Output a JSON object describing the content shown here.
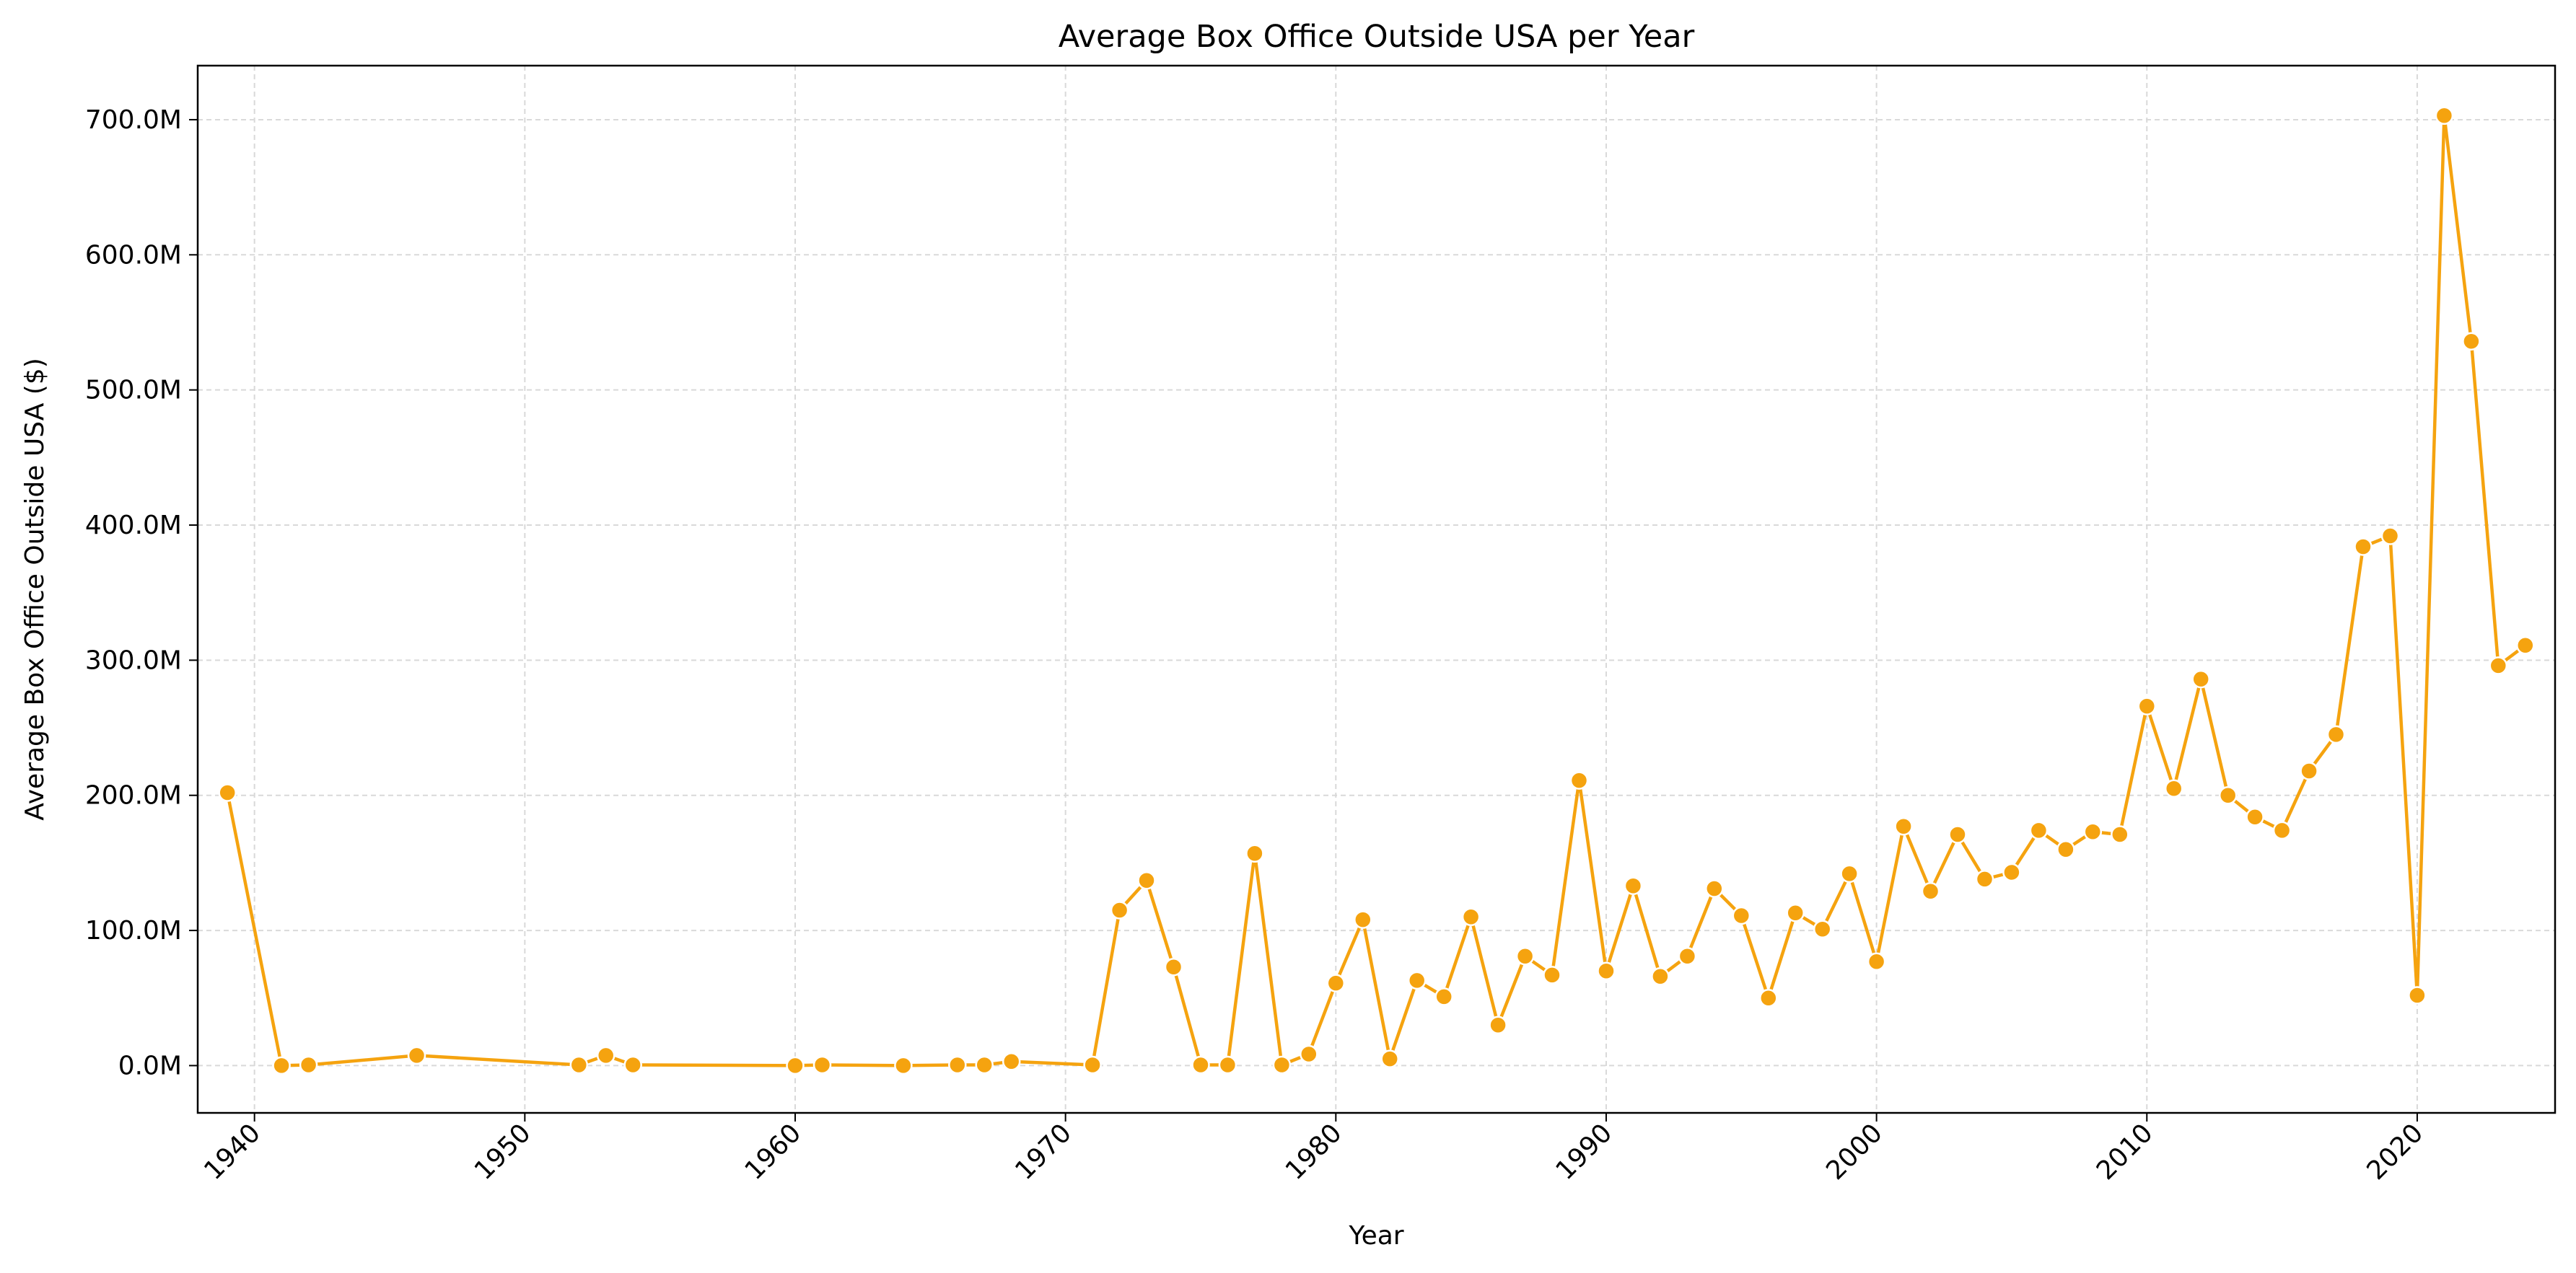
{
  "chart_data": {
    "type": "line",
    "title": "Average Box Office Outside USA per Year",
    "xlabel": "Year",
    "ylabel": "Average Box Office Outside USA ($)",
    "xlim": [
      1937.9,
      1925.1
    ],
    "ylim": [
      -35,
      740
    ],
    "x_ticks": [
      1940,
      1950,
      1960,
      1970,
      1980,
      1990,
      2000,
      2010,
      2020
    ],
    "x_tick_labels": [
      "1940",
      "1950",
      "1960",
      "1970",
      "1980",
      "1990",
      "2000",
      "2010",
      "2020"
    ],
    "y_ticks": [
      0,
      100,
      200,
      300,
      400,
      500,
      600,
      700
    ],
    "y_tick_labels": [
      "0.0M",
      "100.0M",
      "200.0M",
      "300.0M",
      "400.0M",
      "500.0M",
      "600.0M",
      "700.0M"
    ],
    "y_unit": "millions of USD",
    "grid": true,
    "line_color": "#f5a30f",
    "x": [
      1939,
      1941,
      1942,
      1946,
      1952,
      1953,
      1954,
      1960,
      1961,
      1964,
      1966,
      1967,
      1968,
      1971,
      1972,
      1973,
      1974,
      1975,
      1976,
      1977,
      1978,
      1979,
      1980,
      1981,
      1982,
      1983,
      1984,
      1985,
      1986,
      1987,
      1988,
      1989,
      1990,
      1991,
      1992,
      1993,
      1994,
      1995,
      1996,
      1997,
      1998,
      1999,
      2000,
      2001,
      2002,
      2003,
      2004,
      2005,
      2006,
      2007,
      2008,
      2009,
      2010,
      2011,
      2012,
      2013,
      2014,
      2015,
      2016,
      2017,
      2018,
      2019,
      2020,
      2021,
      2022,
      2023,
      2024
    ],
    "values": [
      202,
      0,
      0.5,
      7.5,
      0.5,
      7.5,
      0.5,
      0,
      0.5,
      0,
      0.5,
      0.5,
      3,
      0.5,
      115,
      137,
      73,
      0.5,
      0.5,
      157,
      0.5,
      8.5,
      61,
      108,
      5,
      63,
      51,
      110,
      30,
      81,
      67,
      211,
      70,
      133,
      66,
      81,
      131,
      111,
      50,
      113,
      101,
      142,
      77,
      177,
      129,
      171,
      138,
      143,
      174,
      160,
      173,
      171,
      266,
      205,
      286,
      200,
      184,
      174,
      218,
      245,
      384,
      392,
      52,
      703,
      536,
      296,
      311
    ]
  }
}
